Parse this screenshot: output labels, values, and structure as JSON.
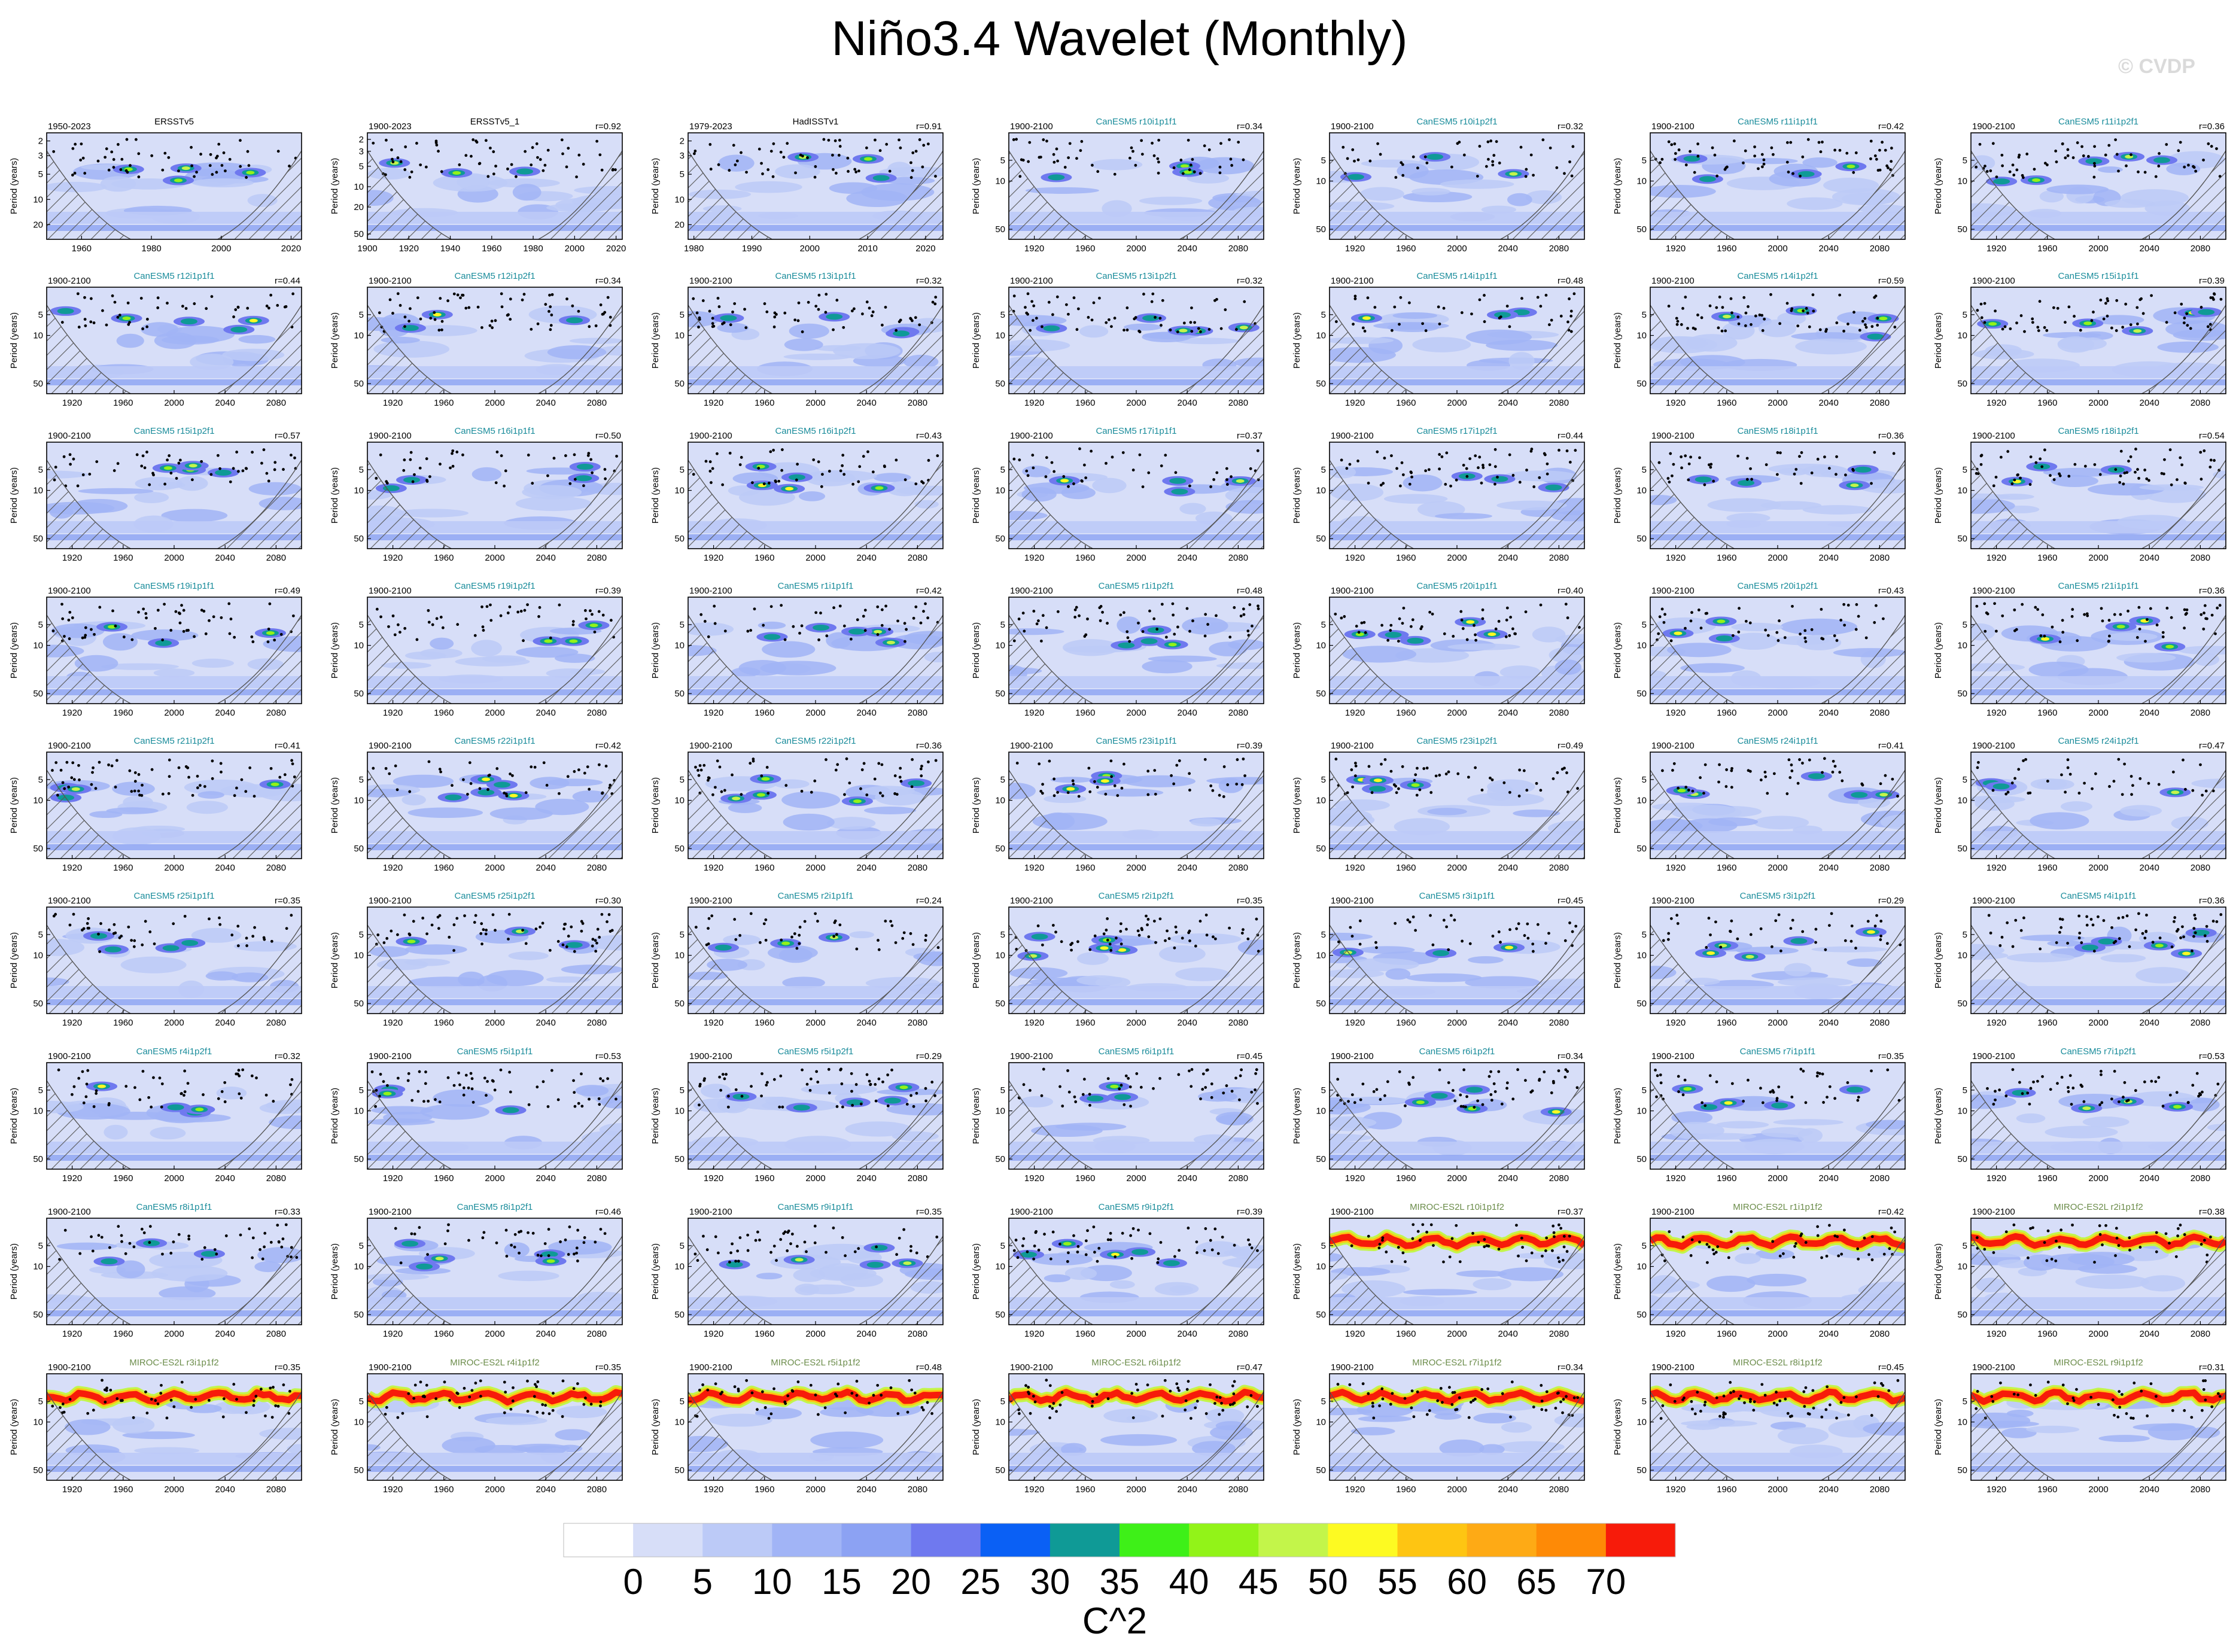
{
  "title": "Niño3.4 Wavelet (Monthly)",
  "watermark": "© CVDP",
  "colors": {
    "levels": [
      "#ffffff",
      "#d7def8",
      "#bccaf7",
      "#a1b4f6",
      "#8ca2f3",
      "#6f79ef",
      "#0a60f5",
      "#0f9a96",
      "#3ef018",
      "#92f318",
      "#c3f54a",
      "#fdfa22",
      "#fec512",
      "#feaa15",
      "#fe8a06",
      "#f71b0a"
    ],
    "cyan_title": "#1a8c9b",
    "green_title": "#6b8c4a"
  },
  "chart_data": {
    "type": "heatmap",
    "colorbar": {
      "label": "C^2",
      "ticks": [
        "0",
        "5",
        "10",
        "15",
        "20",
        "25",
        "30",
        "35",
        "40",
        "45",
        "50",
        "55",
        "60",
        "65",
        "70"
      ]
    },
    "ylabel": "Period (years)",
    "panels": [
      {
        "period": "1950-2023",
        "name": "ERSSTv5",
        "r": "",
        "kind": "obs",
        "xticks": [
          "1960",
          "1980",
          "2000",
          "2020"
        ],
        "x": [
          1950,
          2023
        ],
        "yticks": [
          "2",
          "3",
          "5",
          "10",
          "20"
        ]
      },
      {
        "period": "1900-2023",
        "name": "ERSSTv5_1",
        "r": "r=0.92",
        "kind": "obs",
        "xticks": [
          "1900",
          "1920",
          "1940",
          "1960",
          "1980",
          "2000",
          "2020"
        ],
        "x": [
          1900,
          2023
        ],
        "yticks": [
          "2",
          "3",
          "5",
          "10",
          "20",
          "50"
        ]
      },
      {
        "period": "1979-2023",
        "name": "HadISSTv1",
        "r": "r=0.91",
        "kind": "obs",
        "xticks": [
          "1980",
          "1990",
          "2000",
          "2010",
          "2020"
        ],
        "x": [
          1979,
          2023
        ],
        "yticks": [
          "2",
          "3",
          "5",
          "10",
          "20"
        ]
      },
      {
        "period": "1900-2100",
        "name": "CanESM5 r10i1p1f1",
        "r": "r=0.34",
        "kind": "can"
      },
      {
        "period": "1900-2100",
        "name": "CanESM5 r10i1p2f1",
        "r": "r=0.32",
        "kind": "can"
      },
      {
        "period": "1900-2100",
        "name": "CanESM5 r11i1p1f1",
        "r": "r=0.42",
        "kind": "can"
      },
      {
        "period": "1900-2100",
        "name": "CanESM5 r11i1p2f1",
        "r": "r=0.36",
        "kind": "can"
      },
      {
        "period": "1900-2100",
        "name": "CanESM5 r12i1p1f1",
        "r": "r=0.44",
        "kind": "can"
      },
      {
        "period": "1900-2100",
        "name": "CanESM5 r12i1p2f1",
        "r": "r=0.34",
        "kind": "can"
      },
      {
        "period": "1900-2100",
        "name": "CanESM5 r13i1p1f1",
        "r": "r=0.32",
        "kind": "can"
      },
      {
        "period": "1900-2100",
        "name": "CanESM5 r13i1p2f1",
        "r": "r=0.32",
        "kind": "can"
      },
      {
        "period": "1900-2100",
        "name": "CanESM5 r14i1p1f1",
        "r": "r=0.48",
        "kind": "can"
      },
      {
        "period": "1900-2100",
        "name": "CanESM5 r14i1p2f1",
        "r": "r=0.59",
        "kind": "can"
      },
      {
        "period": "1900-2100",
        "name": "CanESM5 r15i1p1f1",
        "r": "r=0.39",
        "kind": "can"
      },
      {
        "period": "1900-2100",
        "name": "CanESM5 r15i1p2f1",
        "r": "r=0.57",
        "kind": "can"
      },
      {
        "period": "1900-2100",
        "name": "CanESM5 r16i1p1f1",
        "r": "r=0.50",
        "kind": "can"
      },
      {
        "period": "1900-2100",
        "name": "CanESM5 r16i1p2f1",
        "r": "r=0.43",
        "kind": "can"
      },
      {
        "period": "1900-2100",
        "name": "CanESM5 r17i1p1f1",
        "r": "r=0.37",
        "kind": "can"
      },
      {
        "period": "1900-2100",
        "name": "CanESM5 r17i1p2f1",
        "r": "r=0.44",
        "kind": "can"
      },
      {
        "period": "1900-2100",
        "name": "CanESM5 r18i1p1f1",
        "r": "r=0.36",
        "kind": "can"
      },
      {
        "period": "1900-2100",
        "name": "CanESM5 r18i1p2f1",
        "r": "r=0.54",
        "kind": "can"
      },
      {
        "period": "1900-2100",
        "name": "CanESM5 r19i1p1f1",
        "r": "r=0.49",
        "kind": "can"
      },
      {
        "period": "1900-2100",
        "name": "CanESM5 r19i1p2f1",
        "r": "r=0.39",
        "kind": "can"
      },
      {
        "period": "1900-2100",
        "name": "CanESM5 r1i1p1f1",
        "r": "r=0.42",
        "kind": "can"
      },
      {
        "period": "1900-2100",
        "name": "CanESM5 r1i1p2f1",
        "r": "r=0.48",
        "kind": "can"
      },
      {
        "period": "1900-2100",
        "name": "CanESM5 r20i1p1f1",
        "r": "r=0.40",
        "kind": "can"
      },
      {
        "period": "1900-2100",
        "name": "CanESM5 r20i1p2f1",
        "r": "r=0.43",
        "kind": "can"
      },
      {
        "period": "1900-2100",
        "name": "CanESM5 r21i1p1f1",
        "r": "r=0.36",
        "kind": "can"
      },
      {
        "period": "1900-2100",
        "name": "CanESM5 r21i1p2f1",
        "r": "r=0.41",
        "kind": "can"
      },
      {
        "period": "1900-2100",
        "name": "CanESM5 r22i1p1f1",
        "r": "r=0.42",
        "kind": "can"
      },
      {
        "period": "1900-2100",
        "name": "CanESM5 r22i1p2f1",
        "r": "r=0.36",
        "kind": "can"
      },
      {
        "period": "1900-2100",
        "name": "CanESM5 r23i1p1f1",
        "r": "r=0.39",
        "kind": "can"
      },
      {
        "period": "1900-2100",
        "name": "CanESM5 r23i1p2f1",
        "r": "r=0.49",
        "kind": "can"
      },
      {
        "period": "1900-2100",
        "name": "CanESM5 r24i1p1f1",
        "r": "r=0.41",
        "kind": "can"
      },
      {
        "period": "1900-2100",
        "name": "CanESM5 r24i1p2f1",
        "r": "r=0.47",
        "kind": "can"
      },
      {
        "period": "1900-2100",
        "name": "CanESM5 r25i1p1f1",
        "r": "r=0.35",
        "kind": "can"
      },
      {
        "period": "1900-2100",
        "name": "CanESM5 r25i1p2f1",
        "r": "r=0.30",
        "kind": "can"
      },
      {
        "period": "1900-2100",
        "name": "CanESM5 r2i1p1f1",
        "r": "r=0.24",
        "kind": "can"
      },
      {
        "period": "1900-2100",
        "name": "CanESM5 r2i1p2f1",
        "r": "r=0.35",
        "kind": "can"
      },
      {
        "period": "1900-2100",
        "name": "CanESM5 r3i1p1f1",
        "r": "r=0.45",
        "kind": "can"
      },
      {
        "period": "1900-2100",
        "name": "CanESM5 r3i1p2f1",
        "r": "r=0.29",
        "kind": "can"
      },
      {
        "period": "1900-2100",
        "name": "CanESM5 r4i1p1f1",
        "r": "r=0.36",
        "kind": "can"
      },
      {
        "period": "1900-2100",
        "name": "CanESM5 r4i1p2f1",
        "r": "r=0.32",
        "kind": "can"
      },
      {
        "period": "1900-2100",
        "name": "CanESM5 r5i1p1f1",
        "r": "r=0.53",
        "kind": "can"
      },
      {
        "period": "1900-2100",
        "name": "CanESM5 r5i1p2f1",
        "r": "r=0.29",
        "kind": "can"
      },
      {
        "period": "1900-2100",
        "name": "CanESM5 r6i1p1f1",
        "r": "r=0.45",
        "kind": "can"
      },
      {
        "period": "1900-2100",
        "name": "CanESM5 r6i1p2f1",
        "r": "r=0.34",
        "kind": "can"
      },
      {
        "period": "1900-2100",
        "name": "CanESM5 r7i1p1f1",
        "r": "r=0.35",
        "kind": "can"
      },
      {
        "period": "1900-2100",
        "name": "CanESM5 r7i1p2f1",
        "r": "r=0.53",
        "kind": "can"
      },
      {
        "period": "1900-2100",
        "name": "CanESM5 r8i1p1f1",
        "r": "r=0.33",
        "kind": "can"
      },
      {
        "period": "1900-2100",
        "name": "CanESM5 r8i1p2f1",
        "r": "r=0.46",
        "kind": "can"
      },
      {
        "period": "1900-2100",
        "name": "CanESM5 r9i1p1f1",
        "r": "r=0.35",
        "kind": "can"
      },
      {
        "period": "1900-2100",
        "name": "CanESM5 r9i1p2f1",
        "r": "r=0.39",
        "kind": "can"
      },
      {
        "period": "1900-2100",
        "name": "MIROC-ES2L r10i1p1f2",
        "r": "r=0.37",
        "kind": "miroc"
      },
      {
        "period": "1900-2100",
        "name": "MIROC-ES2L r1i1p1f2",
        "r": "r=0.42",
        "kind": "miroc"
      },
      {
        "period": "1900-2100",
        "name": "MIROC-ES2L r2i1p1f2",
        "r": "r=0.38",
        "kind": "miroc"
      },
      {
        "period": "1900-2100",
        "name": "MIROC-ES2L r3i1p1f2",
        "r": "r=0.35",
        "kind": "miroc"
      },
      {
        "period": "1900-2100",
        "name": "MIROC-ES2L r4i1p1f2",
        "r": "r=0.35",
        "kind": "miroc"
      },
      {
        "period": "1900-2100",
        "name": "MIROC-ES2L r5i1p1f2",
        "r": "r=0.48",
        "kind": "miroc"
      },
      {
        "period": "1900-2100",
        "name": "MIROC-ES2L r6i1p1f2",
        "r": "r=0.47",
        "kind": "miroc"
      },
      {
        "period": "1900-2100",
        "name": "MIROC-ES2L r7i1p1f2",
        "r": "r=0.34",
        "kind": "miroc"
      },
      {
        "period": "1900-2100",
        "name": "MIROC-ES2L r8i1p1f2",
        "r": "r=0.45",
        "kind": "miroc"
      },
      {
        "period": "1900-2100",
        "name": "MIROC-ES2L r9i1p1f2",
        "r": "r=0.31",
        "kind": "miroc"
      }
    ],
    "model_axes": {
      "x": [
        1900,
        2100
      ],
      "xticks": [
        "1920",
        "1960",
        "2000",
        "2040",
        "2080"
      ],
      "yticks": [
        "5",
        "10",
        "50"
      ],
      "yrange": [
        2,
        70
      ]
    }
  }
}
